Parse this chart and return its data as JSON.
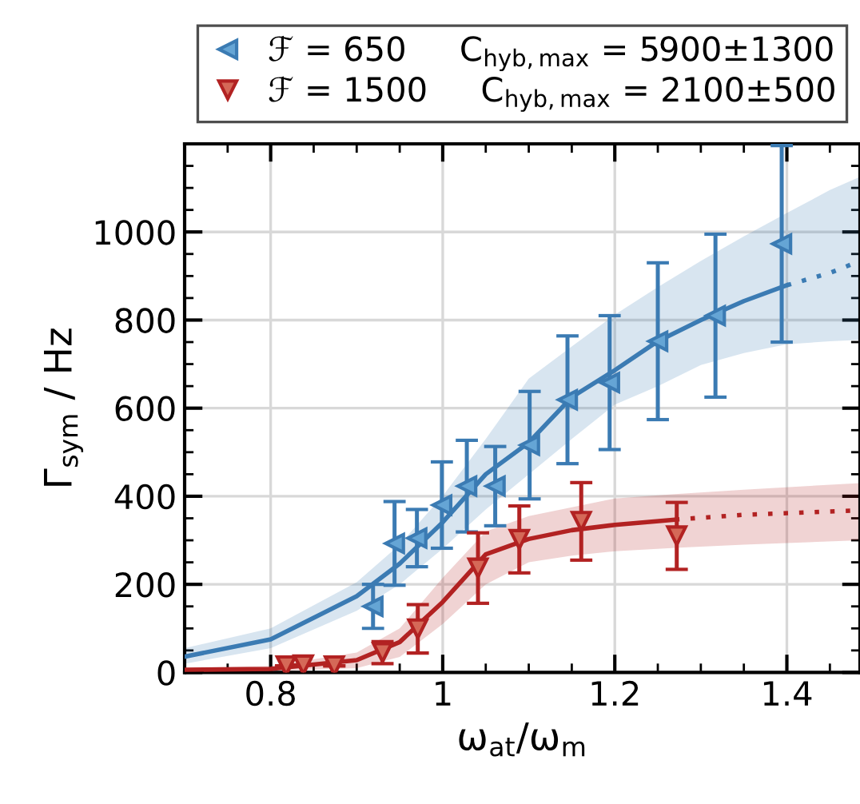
{
  "chart_data": {
    "type": "scatter",
    "xlabel": "ω$_{at}$/ω$_{m}$",
    "ylabel": "Γ$_{sym}$ / Hz",
    "xlim": [
      0.7,
      1.485
    ],
    "xticks": [
      0.8,
      1,
      1.2,
      1.4
    ],
    "ylim": [
      0,
      1200
    ],
    "yticks": [
      0,
      200,
      400,
      600,
      800,
      1000
    ],
    "grid": true,
    "legend": "top",
    "series": [
      {
        "name": "ℱ = 650     C$_{hyb,max}$ = 5900±1300",
        "color": "#3b7bb3",
        "marker": "triangle",
        "x": [
          0.919,
          0.944,
          0.97,
          0.999,
          1.028,
          1.061,
          1.101,
          1.145,
          1.194,
          1.25,
          1.317,
          1.394
        ],
        "values": [
          150,
          293,
          305,
          380,
          423,
          423,
          516,
          619,
          658,
          752,
          810,
          973
        ],
        "errors": [
          50,
          95,
          65,
          98,
          104,
          90,
          122,
          145,
          152,
          178,
          185,
          223
        ]
      },
      {
        "name": "ℱ = 1500     C$_{hyb,max}$ = 2100±500",
        "color": "#b22222",
        "marker": "triangle",
        "x": [
          0.818,
          0.838,
          0.874,
          0.93,
          0.971,
          1.041,
          1.089,
          1.161,
          1.272
        ],
        "values": [
          15,
          17,
          15,
          45,
          99,
          237,
          302,
          343,
          310
        ],
        "errors": [
          null,
          null,
          null,
          25,
          55,
          80,
          76,
          88,
          76
        ]
      },
      {
        "type": "line",
        "color": "#3b7bb3",
        "line_style": "solid",
        "marker": "none",
        "x": [
          0.7,
          0.8,
          0.9,
          0.95,
          1.0,
          1.05,
          1.1,
          1.15,
          1.2,
          1.25,
          1.3,
          1.35,
          1.4
        ],
        "values": [
          36,
          75,
          173,
          247,
          341,
          450,
          522,
          625,
          686,
          752,
          800,
          843,
          879
        ],
        "lower": [
          20,
          55,
          140,
          200,
          281,
          370,
          450,
          530,
          608,
          650,
          698,
          725,
          745
        ],
        "upper": [
          55,
          100,
          205,
          290,
          401,
          530,
          667,
          740,
          812,
          875,
          934,
          990,
          1043
        ]
      },
      {
        "type": "line",
        "color": "#3b7bb3",
        "line_style": "dotted",
        "marker": "none",
        "x": [
          1.4,
          1.45,
          1.485
        ],
        "values": [
          879,
          907,
          934
        ],
        "lower": [
          745,
          752,
          755
        ],
        "upper": [
          1043,
          1095,
          1125
        ]
      },
      {
        "type": "line",
        "color": "#b22222",
        "line_style": "solid",
        "marker": "none",
        "x": [
          0.7,
          0.8,
          0.9,
          0.95,
          1.0,
          1.05,
          1.1,
          1.15,
          1.2,
          1.27
        ],
        "values": [
          6,
          8,
          28,
          69,
          160,
          268,
          303,
          323,
          335,
          347
        ],
        "lower": [
          0,
          3,
          10,
          35,
          110,
          200,
          250,
          265,
          275,
          283
        ],
        "upper": [
          10,
          15,
          45,
          100,
          215,
          320,
          355,
          375,
          395,
          405
        ]
      },
      {
        "type": "line",
        "color": "#b22222",
        "line_style": "dotted",
        "marker": "none",
        "x": [
          1.27,
          1.35,
          1.485
        ],
        "values": [
          347,
          358,
          368
        ],
        "lower": [
          283,
          290,
          300
        ],
        "upper": [
          405,
          415,
          430
        ]
      }
    ]
  }
}
